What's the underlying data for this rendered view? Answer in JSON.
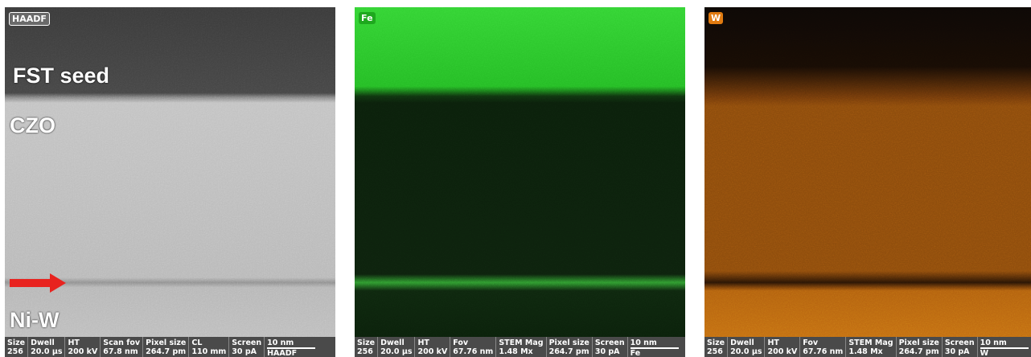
{
  "panels": [
    {
      "badge": "HAADF",
      "labels": [
        "FST seed",
        "CZO",
        "Ni-W"
      ],
      "info": [
        {
          "header": "Size",
          "value": "256"
        },
        {
          "header": "Dwell",
          "value": "20.0 µs"
        },
        {
          "header": "HT",
          "value": "200 kV"
        },
        {
          "header": "Scan fov",
          "value": "67.8 nm"
        },
        {
          "header": "Pixel size",
          "value": "264.7 pm"
        },
        {
          "header": "CL",
          "value": "110 mm"
        },
        {
          "header": "Screen",
          "value": "30 pA"
        },
        {
          "header": "10 nm",
          "value": "HAADF"
        }
      ]
    },
    {
      "badge": "Fe",
      "labels": [],
      "info": [
        {
          "header": "Size",
          "value": "256"
        },
        {
          "header": "Dwell",
          "value": "20.0 µs"
        },
        {
          "header": "HT",
          "value": "200 kV"
        },
        {
          "header": "Fov",
          "value": "67.76 nm"
        },
        {
          "header": "STEM Mag",
          "value": "1.48 Mx"
        },
        {
          "header": "Pixel size",
          "value": "264.7 pm"
        },
        {
          "header": "Screen",
          "value": "30 pA"
        },
        {
          "header": "10 nm",
          "value": "Fe"
        }
      ]
    },
    {
      "badge": "W",
      "labels": [],
      "info": [
        {
          "header": "Size",
          "value": "256"
        },
        {
          "header": "Dwell",
          "value": "20.0 µs"
        },
        {
          "header": "HT",
          "value": "200 kV"
        },
        {
          "header": "Fov",
          "value": "67.76 nm"
        },
        {
          "header": "STEM Mag",
          "value": "1.48 Mx"
        },
        {
          "header": "Pixel size",
          "value": "264.7 pm"
        },
        {
          "header": "Screen",
          "value": "30 pA"
        },
        {
          "header": "10 nm",
          "value": "W"
        }
      ]
    }
  ]
}
